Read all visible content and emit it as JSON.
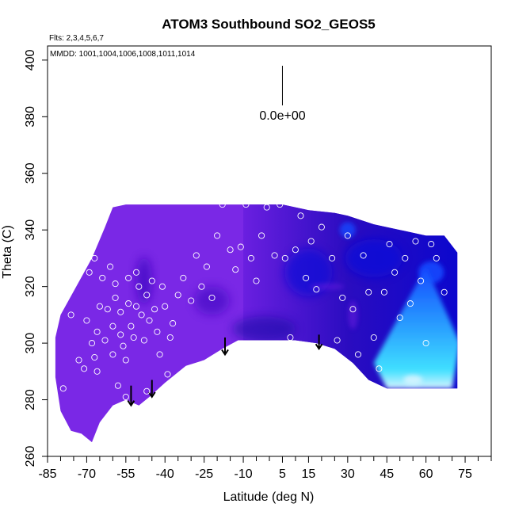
{
  "chart_data": {
    "type": "heatmap",
    "title": "ATOM3 Southbound SO2_GEOS5",
    "flights_label": "Flts: 2,3,4,5,6,7",
    "dates_label": "MMDD: 1001,1004,1006,1008,1011,1014",
    "xlabel": "Latitude (deg N)",
    "ylabel": "Theta (C)",
    "xlim": [
      -85,
      85
    ],
    "ylim": [
      260,
      405
    ],
    "x_ticks": [
      -85,
      -70,
      -55,
      -40,
      -25,
      -10,
      5,
      15,
      30,
      45,
      60,
      75
    ],
    "x_minor_ticks": [
      -80,
      -75,
      -65,
      -60,
      -50,
      -45,
      -35,
      -30,
      -20,
      -15,
      -5,
      0,
      10,
      20,
      25,
      35,
      40,
      50,
      55,
      65,
      70,
      80,
      85
    ],
    "y_ticks": [
      260,
      280,
      300,
      320,
      340,
      360,
      380,
      400
    ],
    "scale_label": "0.0e+00",
    "colors": {
      "violet": "#7a28e6",
      "purple": "#6a1fe0",
      "indigo": "#4a10c8",
      "navy": "#1a0aa8",
      "blue": "#0808d8",
      "bright_blue": "#1448ff",
      "sky": "#2aa0ff",
      "cyan": "#40e0ff",
      "white_blue": "#d8f4ff"
    },
    "field_top": [
      [
        -68,
        330
      ],
      [
        -63,
        341
      ],
      [
        -60,
        348
      ],
      [
        -55,
        349
      ],
      [
        -40,
        349
      ],
      [
        -25,
        349
      ],
      [
        -10,
        349
      ],
      [
        5,
        349
      ],
      [
        15,
        347
      ],
      [
        25,
        346
      ],
      [
        30,
        345
      ],
      [
        40,
        342
      ],
      [
        50,
        340
      ],
      [
        60,
        338
      ],
      [
        67,
        338
      ],
      [
        72,
        332
      ]
    ],
    "field_bottom": [
      [
        72,
        284
      ],
      [
        60,
        284
      ],
      [
        50,
        284
      ],
      [
        45,
        284
      ],
      [
        38,
        287
      ],
      [
        32,
        293
      ],
      [
        25,
        298
      ],
      [
        18,
        300
      ],
      [
        10,
        301
      ],
      [
        -5,
        301
      ],
      [
        -12,
        301
      ],
      [
        -18,
        298
      ],
      [
        -25,
        294
      ],
      [
        -32,
        292
      ],
      [
        -40,
        286
      ],
      [
        -46,
        281
      ],
      [
        -50,
        278
      ],
      [
        -55,
        280
      ],
      [
        -60,
        278
      ],
      [
        -65,
        272
      ],
      [
        -68,
        265
      ],
      [
        -72,
        268
      ],
      [
        -76,
        269
      ],
      [
        -80,
        276
      ],
      [
        -82,
        288
      ],
      [
        -82,
        302
      ],
      [
        -80,
        310
      ]
    ],
    "observation_points": [
      [
        -83,
        309
      ],
      [
        -79,
        284
      ],
      [
        -76,
        310
      ],
      [
        -73,
        294
      ],
      [
        -71,
        291
      ],
      [
        -70,
        308
      ],
      [
        -69,
        325
      ],
      [
        -68,
        300
      ],
      [
        -67,
        295
      ],
      [
        -67,
        330
      ],
      [
        -66,
        304
      ],
      [
        -66,
        290
      ],
      [
        -65,
        313
      ],
      [
        -64,
        323
      ],
      [
        -63,
        301
      ],
      [
        -62,
        312
      ],
      [
        -61,
        327
      ],
      [
        -60,
        296
      ],
      [
        -60,
        306
      ],
      [
        -59,
        316
      ],
      [
        -59,
        321
      ],
      [
        -58,
        285
      ],
      [
        -57,
        303
      ],
      [
        -57,
        311
      ],
      [
        -56,
        299
      ],
      [
        -55,
        294
      ],
      [
        -55,
        281
      ],
      [
        -54,
        314
      ],
      [
        -54,
        323
      ],
      [
        -53,
        306
      ],
      [
        -52,
        302
      ],
      [
        -51,
        313
      ],
      [
        -51,
        325
      ],
      [
        -50,
        320
      ],
      [
        -49,
        310
      ],
      [
        -48,
        301
      ],
      [
        -47,
        317
      ],
      [
        -47,
        283
      ],
      [
        -46,
        308
      ],
      [
        -45,
        322
      ],
      [
        -44,
        312
      ],
      [
        -43,
        304
      ],
      [
        -42,
        296
      ],
      [
        -41,
        320
      ],
      [
        -40,
        313
      ],
      [
        -39,
        289
      ],
      [
        -38,
        302
      ],
      [
        -37,
        307
      ],
      [
        -35,
        317
      ],
      [
        -33,
        323
      ],
      [
        -30,
        315
      ],
      [
        -28,
        331
      ],
      [
        -26,
        320
      ],
      [
        -24,
        327
      ],
      [
        -22,
        316
      ],
      [
        -20,
        338
      ],
      [
        -18,
        349
      ],
      [
        -15,
        333
      ],
      [
        -13,
        326
      ],
      [
        -11,
        334
      ],
      [
        -9,
        349
      ],
      [
        -7,
        330
      ],
      [
        -5,
        322
      ],
      [
        -3,
        338
      ],
      [
        -1,
        348
      ],
      [
        2,
        331
      ],
      [
        4,
        349
      ],
      [
        6,
        330
      ],
      [
        8,
        302
      ],
      [
        10,
        333
      ],
      [
        12,
        345
      ],
      [
        14,
        323
      ],
      [
        16,
        336
      ],
      [
        18,
        319
      ],
      [
        20,
        341
      ],
      [
        22,
        348
      ],
      [
        24,
        330
      ],
      [
        26,
        301
      ],
      [
        28,
        316
      ],
      [
        30,
        338
      ],
      [
        32,
        312
      ],
      [
        34,
        296
      ],
      [
        36,
        331
      ],
      [
        38,
        318
      ],
      [
        40,
        302
      ],
      [
        42,
        291
      ],
      [
        44,
        318
      ],
      [
        46,
        335
      ],
      [
        48,
        325
      ],
      [
        50,
        309
      ],
      [
        52,
        330
      ],
      [
        54,
        314
      ],
      [
        56,
        336
      ],
      [
        58,
        322
      ],
      [
        60,
        300
      ],
      [
        62,
        335
      ],
      [
        64,
        330
      ],
      [
        67,
        318
      ]
    ],
    "wind_arrows": [
      {
        "x": -53,
        "y_start": 285,
        "y_end": 278
      },
      {
        "x": -45,
        "y_start": 287,
        "y_end": 281
      },
      {
        "x": -17,
        "y_start": 302,
        "y_end": 296
      },
      {
        "x": 19,
        "y_start": 303,
        "y_end": 298
      }
    ],
    "scale_bar": {
      "x": 5,
      "y_top": 398,
      "y_bottom": 384
    }
  }
}
